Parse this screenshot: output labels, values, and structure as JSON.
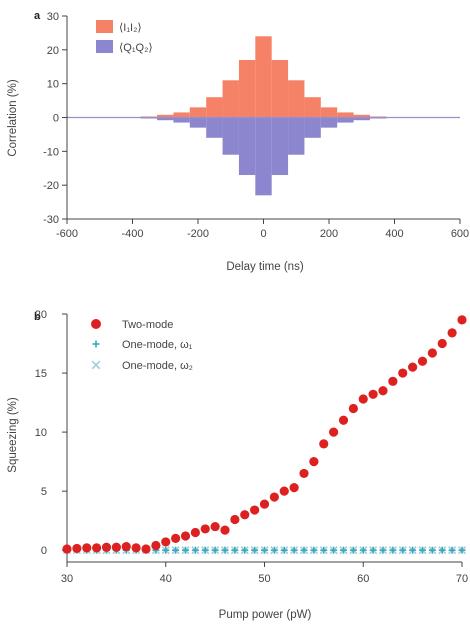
{
  "colors": {
    "positive_bar": "#F58266",
    "negative_bar": "#8C86CE",
    "two_mode": "#DD2020",
    "one_mode_a": "#3AA7C3",
    "one_mode_b": "#9FCFD6",
    "axis": "#444444",
    "zero_line": "#9C8FC8"
  },
  "chart_data": [
    {
      "panel": "a",
      "type": "bar",
      "xlabel": "Delay time (ns)",
      "ylabel": "Correlation (%)",
      "xlim": [
        -600,
        600
      ],
      "ylim": [
        -30,
        30
      ],
      "xticks": [
        "-600",
        "-400",
        "-200",
        "0",
        "200",
        "400",
        "600"
      ],
      "yticks": [
        "30",
        "20",
        "10",
        "0",
        "-10",
        "-20",
        "-30"
      ],
      "bin_width": 50,
      "legend_position": "top-left",
      "series": [
        {
          "name": "⟨I₁I₂⟩",
          "x": [
            -350,
            -300,
            -250,
            -200,
            -150,
            -100,
            -50,
            0,
            50,
            100,
            150,
            200,
            250,
            300,
            350
          ],
          "values": [
            0.3,
            0.8,
            1.5,
            3,
            6,
            11,
            17,
            24,
            17,
            11,
            6,
            3,
            1.5,
            0.8,
            0.3
          ]
        },
        {
          "name": "⟨Q₁Q₂⟩",
          "x": [
            -350,
            -300,
            -250,
            -200,
            -150,
            -100,
            -50,
            0,
            50,
            100,
            150,
            200,
            250,
            300,
            350
          ],
          "values": [
            -0.3,
            -0.8,
            -1.5,
            -3,
            -6,
            -11,
            -17,
            -23,
            -17,
            -11,
            -6,
            -3,
            -1.5,
            -0.8,
            -0.3
          ]
        }
      ]
    },
    {
      "panel": "b",
      "type": "scatter",
      "xlabel": "Pump power (pW)",
      "ylabel": "Squeezing (%)",
      "xlim": [
        30,
        70
      ],
      "ylim": [
        -1,
        20
      ],
      "xticks": [
        "30",
        "40",
        "50",
        "60",
        "70"
      ],
      "yticks": [
        "20",
        "15",
        "10",
        "5",
        "0"
      ],
      "legend_position": "top-left",
      "series": [
        {
          "name": "Two-mode",
          "x": [
            30,
            31,
            32,
            33,
            34,
            35,
            36,
            37,
            38,
            39,
            40,
            41,
            42,
            43,
            44,
            45,
            46,
            47,
            48,
            49,
            50,
            51,
            52,
            53,
            54,
            55,
            56,
            57,
            58,
            59,
            60,
            61,
            62,
            63,
            64,
            65,
            66,
            67,
            68,
            69,
            70
          ],
          "values": [
            0.1,
            0.15,
            0.2,
            0.2,
            0.25,
            0.25,
            0.3,
            0.2,
            0.1,
            0.4,
            0.7,
            1.0,
            1.2,
            1.5,
            1.8,
            2.0,
            1.7,
            2.6,
            3.0,
            3.4,
            3.9,
            4.5,
            5.0,
            5.3,
            6.5,
            7.5,
            9.0,
            10.0,
            11.0,
            12.0,
            12.8,
            13.2,
            13.5,
            14.3,
            15.0,
            15.5,
            16.0,
            16.7,
            17.5,
            18.4,
            19.5
          ]
        },
        {
          "name": "One-mode, ω₁",
          "x": [
            30,
            31,
            32,
            33,
            34,
            35,
            36,
            37,
            38,
            39,
            40,
            41,
            42,
            43,
            44,
            45,
            46,
            47,
            48,
            49,
            50,
            51,
            52,
            53,
            54,
            55,
            56,
            57,
            58,
            59,
            60,
            61,
            62,
            63,
            64,
            65,
            66,
            67,
            68,
            69,
            70
          ],
          "values": [
            0,
            0,
            0,
            0,
            0,
            0,
            0,
            0,
            0,
            0,
            0,
            0,
            0,
            0,
            0,
            0,
            0,
            0,
            0,
            0,
            0,
            0,
            0,
            0,
            0,
            0,
            0,
            0,
            0,
            0,
            0,
            0,
            0,
            0,
            0,
            0,
            0,
            0,
            0,
            0,
            0
          ]
        },
        {
          "name": "One-mode, ω₂",
          "x": [
            30,
            31,
            32,
            33,
            34,
            35,
            36,
            37,
            38,
            39,
            40,
            41,
            42,
            43,
            44,
            45,
            46,
            47,
            48,
            49,
            50,
            51,
            52,
            53,
            54,
            55,
            56,
            57,
            58,
            59,
            60,
            61,
            62,
            63,
            64,
            65,
            66,
            67,
            68,
            69,
            70
          ],
          "values": [
            0,
            0,
            0,
            0,
            0,
            0,
            0,
            0,
            0,
            0,
            0,
            0,
            0,
            0,
            0,
            0,
            0,
            0,
            0,
            0,
            0,
            0,
            0,
            0,
            0,
            0,
            0,
            0,
            0,
            0,
            0,
            0,
            0,
            0,
            0,
            0,
            0,
            0,
            0,
            0,
            0
          ]
        }
      ]
    }
  ]
}
